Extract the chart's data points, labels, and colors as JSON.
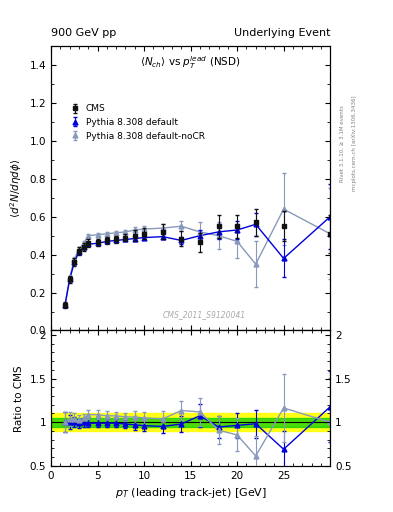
{
  "title_left": "900 GeV pp",
  "title_right": "Underlying Event",
  "plot_title": "<N_{ch}> vs p_{T}^{lead} (NSD)",
  "ylabel_main": "<d^{2} N/d#etad#phi>",
  "ylabel_ratio": "Ratio to CMS",
  "xlabel": "p_{T} (leading track-jet) [GeV]",
  "watermark": "CMS_2011_S9120041",
  "right_label": "Rivet 3.1.10, ≥ 3.1M events",
  "right_label2": "mcplots.cern.ch [arXiv:1306.3436]",
  "cms_x": [
    1.5,
    2.0,
    2.5,
    3.0,
    3.5,
    4.0,
    5.0,
    6.0,
    7.0,
    8.0,
    9.0,
    10.0,
    12.0,
    14.0,
    16.0,
    18.0,
    20.0,
    22.0,
    25.0,
    30.0
  ],
  "cms_y": [
    0.135,
    0.27,
    0.36,
    0.42,
    0.44,
    0.46,
    0.465,
    0.475,
    0.48,
    0.49,
    0.5,
    0.51,
    0.52,
    0.485,
    0.465,
    0.55,
    0.55,
    0.57,
    0.55,
    0.51
  ],
  "cms_yerr": [
    0.015,
    0.02,
    0.02,
    0.02,
    0.02,
    0.02,
    0.02,
    0.02,
    0.02,
    0.02,
    0.03,
    0.03,
    0.04,
    0.04,
    0.05,
    0.06,
    0.06,
    0.07,
    0.08,
    0.1
  ],
  "py_x": [
    1.5,
    2.0,
    2.5,
    3.0,
    3.5,
    4.0,
    5.0,
    6.0,
    7.0,
    8.0,
    9.0,
    10.0,
    12.0,
    14.0,
    16.0,
    18.0,
    20.0,
    22.0,
    25.0,
    30.0
  ],
  "py_y": [
    0.135,
    0.27,
    0.36,
    0.415,
    0.44,
    0.455,
    0.46,
    0.47,
    0.475,
    0.48,
    0.485,
    0.49,
    0.495,
    0.475,
    0.5,
    0.52,
    0.53,
    0.56,
    0.38,
    0.6
  ],
  "py_yerr": [
    0.005,
    0.008,
    0.008,
    0.008,
    0.008,
    0.008,
    0.008,
    0.008,
    0.008,
    0.01,
    0.01,
    0.01,
    0.015,
    0.02,
    0.03,
    0.04,
    0.05,
    0.06,
    0.1,
    0.17
  ],
  "nocr_x": [
    1.5,
    2.0,
    2.5,
    3.0,
    3.5,
    4.0,
    5.0,
    6.0,
    7.0,
    8.0,
    9.0,
    10.0,
    12.0,
    14.0,
    16.0,
    18.0,
    20.0,
    22.0,
    25.0,
    30.0
  ],
  "nocr_y": [
    0.135,
    0.28,
    0.375,
    0.43,
    0.46,
    0.5,
    0.505,
    0.51,
    0.515,
    0.52,
    0.53,
    0.535,
    0.54,
    0.55,
    0.52,
    0.5,
    0.47,
    0.35,
    0.64,
    0.51
  ],
  "nocr_yerr": [
    0.005,
    0.008,
    0.008,
    0.01,
    0.01,
    0.01,
    0.01,
    0.01,
    0.01,
    0.01,
    0.015,
    0.015,
    0.02,
    0.025,
    0.05,
    0.07,
    0.09,
    0.12,
    0.19,
    0.24
  ],
  "color_cms": "#111111",
  "color_py": "#0000dd",
  "color_nocr": "#8899bb",
  "ylim_main": [
    0.0,
    1.5
  ],
  "ylim_ratio": [
    0.5,
    2.05
  ],
  "xlim": [
    0.0,
    30.0
  ],
  "xticks": [
    0,
    5,
    10,
    15,
    20,
    25
  ],
  "xticklabels": [
    "0",
    "5",
    "10",
    "15",
    "20",
    "25"
  ],
  "yticks_main": [
    0.0,
    0.2,
    0.4,
    0.6,
    0.8,
    1.0,
    1.2,
    1.4
  ],
  "yticks_ratio": [
    0.5,
    1.0,
    1.5,
    2.0
  ],
  "green_band_inner": 0.05,
  "yellow_band_outer": 0.1
}
